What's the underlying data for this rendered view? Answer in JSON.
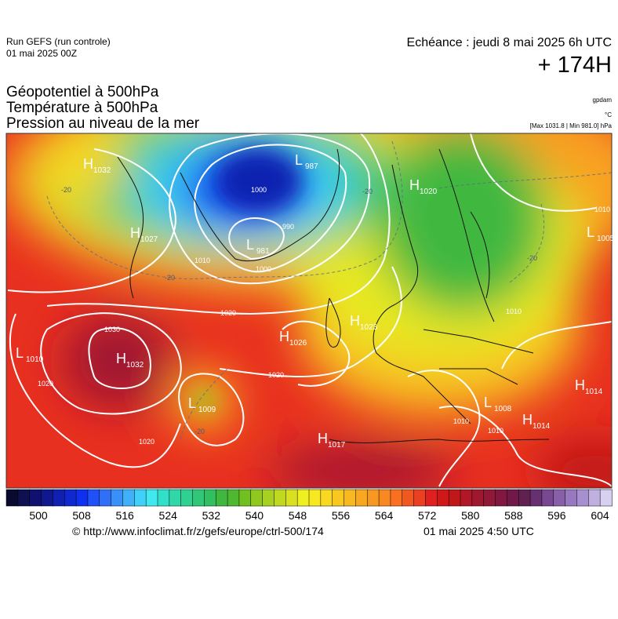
{
  "header": {
    "run": "Run GEFS (run controle)",
    "run_date": "01 mai 2025 00Z",
    "forecast": "Echéance : jeudi 8 mai 2025 6h UTC",
    "lead": "+ 174H",
    "fields": [
      "Géopotentiel à 500hPa",
      "Température à 500hPa",
      "Pression au niveau de la mer"
    ],
    "unit_geopotential": "gpdam",
    "unit_temperature": "°C",
    "pressure_range": "[Max 1031.8 | Min 981.0] hPa"
  },
  "map": {
    "pressure_centers": [
      {
        "type": "H",
        "value": "1032"
      },
      {
        "type": "L",
        "value": "987"
      },
      {
        "type": "L",
        "value": "981"
      },
      {
        "type": "H",
        "value": "1027"
      },
      {
        "type": "H",
        "value": "1020"
      },
      {
        "type": "L",
        "value": "1005"
      },
      {
        "type": "H",
        "value": "1032"
      },
      {
        "type": "L",
        "value": "1010"
      },
      {
        "type": "H",
        "value": "1026"
      },
      {
        "type": "H",
        "value": "1023"
      },
      {
        "type": "L",
        "value": "1009"
      },
      {
        "type": "H",
        "value": "1017"
      },
      {
        "type": "H",
        "value": "1014"
      },
      {
        "type": "L",
        "value": "1008"
      },
      {
        "type": "H",
        "value": "1014"
      }
    ],
    "contour_labels": [
      "1000",
      "1000",
      "990",
      "1010",
      "1010",
      "1010",
      "1020",
      "1020",
      "1020",
      "1020",
      "1030",
      "1010",
      "1010",
      "-20",
      "-20",
      "-20",
      "-20",
      "-20"
    ]
  },
  "colorbar": {
    "colors": [
      "#0a0a30",
      "#0e1050",
      "#101070",
      "#101890",
      "#1020b0",
      "#1028d0",
      "#1030f0",
      "#2050f8",
      "#3070f8",
      "#3890f8",
      "#40b0f8",
      "#40d0f8",
      "#40e8f0",
      "#30e0c8",
      "#30d8a8",
      "#30d090",
      "#30c878",
      "#30c060",
      "#40b840",
      "#50b830",
      "#70c020",
      "#90c820",
      "#a8d020",
      "#c0d820",
      "#d8e020",
      "#f0f020",
      "#f8e820",
      "#f8d820",
      "#f8c820",
      "#f8b820",
      "#f8a820",
      "#f89820",
      "#f88820",
      "#f87020",
      "#f05820",
      "#e84020",
      "#e02020",
      "#d01818",
      "#c01818",
      "#b01828",
      "#a01830",
      "#901838",
      "#801840",
      "#701848",
      "#602050",
      "#683070",
      "#784890",
      "#8860a8",
      "#9878c0",
      "#a890d0",
      "#c0b0e0",
      "#d8d0f0"
    ],
    "ticks": [
      500,
      508,
      516,
      524,
      532,
      540,
      548,
      556,
      564,
      572,
      580,
      588,
      596,
      604
    ]
  },
  "footer": {
    "source": "© http://www.infoclimat.fr/z/gefs/europe/ctrl-500/174",
    "generated": "01 mai 2025  4:50 UTC"
  }
}
